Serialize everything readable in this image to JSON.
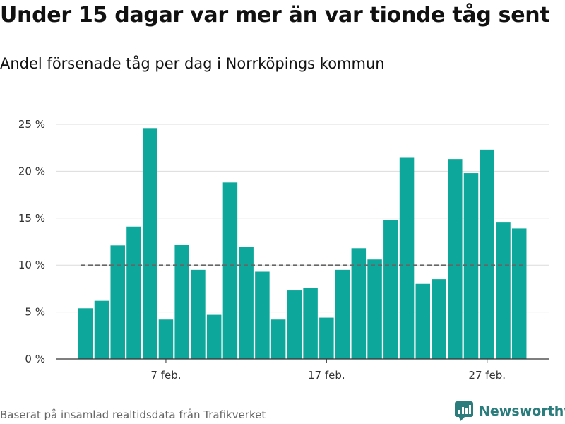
{
  "title": "Under 15 dagar var mer än var tionde tåg sent",
  "subtitle": "Andel försenade tåg per dag i Norrköpings kommun",
  "source": "Baserat på insamlad realtidsdata från Trafikverket",
  "brand": {
    "name": "Newsworthy",
    "logo_icon": "newsworthy-logo-icon",
    "color": "#2a7d7c"
  },
  "chart_data": {
    "type": "bar",
    "x": [
      "2 feb.",
      "3 feb.",
      "4 feb.",
      "5 feb.",
      "6 feb.",
      "7 feb.",
      "8 feb.",
      "9 feb.",
      "10 feb.",
      "11 feb.",
      "12 feb.",
      "13 feb.",
      "14 feb.",
      "15 feb.",
      "16 feb.",
      "17 feb.",
      "18 feb.",
      "19 feb.",
      "20 feb.",
      "21 feb.",
      "22 feb.",
      "23 feb.",
      "24 feb.",
      "25 feb.",
      "26 feb.",
      "27 feb.",
      "28 feb.",
      "29 feb."
    ],
    "values": [
      5.4,
      6.2,
      12.1,
      14.1,
      24.6,
      4.2,
      12.2,
      9.5,
      4.7,
      18.8,
      11.9,
      9.3,
      4.2,
      7.3,
      7.6,
      4.4,
      9.5,
      11.8,
      10.6,
      14.8,
      21.5,
      8.0,
      8.5,
      21.3,
      19.8,
      22.3,
      14.6,
      13.9
    ],
    "bar_color": "#0da89b",
    "reference_line": 10,
    "y_ticks": [
      "0 %",
      "5 %",
      "10 %",
      "15 %",
      "20 %",
      "25 %"
    ],
    "ylim": [
      0,
      25
    ],
    "x_tick_labels": [
      {
        "index": 5,
        "label": "7 feb."
      },
      {
        "index": 15,
        "label": "17 feb."
      },
      {
        "index": 25,
        "label": "27 feb."
      }
    ],
    "grid": true
  }
}
